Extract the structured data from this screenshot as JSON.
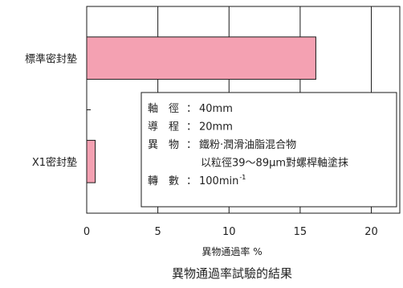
{
  "chart_data": {
    "type": "bar",
    "orientation": "horizontal",
    "categories": [
      "標準密封墊",
      "X1密封墊"
    ],
    "values": [
      16.1,
      0.6
    ],
    "xlim": [
      0,
      22
    ],
    "xticks": [
      0,
      5,
      10,
      15,
      20
    ],
    "xlabel": "異物通過率 %",
    "ylabel": "",
    "title": "異物通過率試驗的結果",
    "grid": true,
    "legend": "none",
    "bar_color": "#f4a1b2",
    "bar_edge_color": "#1a1a1a",
    "annotation": {
      "position": "lower-right",
      "rows": [
        {
          "label": "軸　徑",
          "sep": "：",
          "value": "40mm"
        },
        {
          "label": "導　程",
          "sep": "：",
          "value": "20mm"
        },
        {
          "label": "異　物",
          "sep": "：",
          "value": "鐵粉‧潤滑油脂混合物"
        },
        {
          "label": "",
          "sep": "",
          "value": "以粒徑39～89μm對螺桿軸塗抹"
        },
        {
          "label": "轉　數",
          "sep": "：",
          "value": "100min",
          "sup": "-1"
        }
      ]
    }
  }
}
